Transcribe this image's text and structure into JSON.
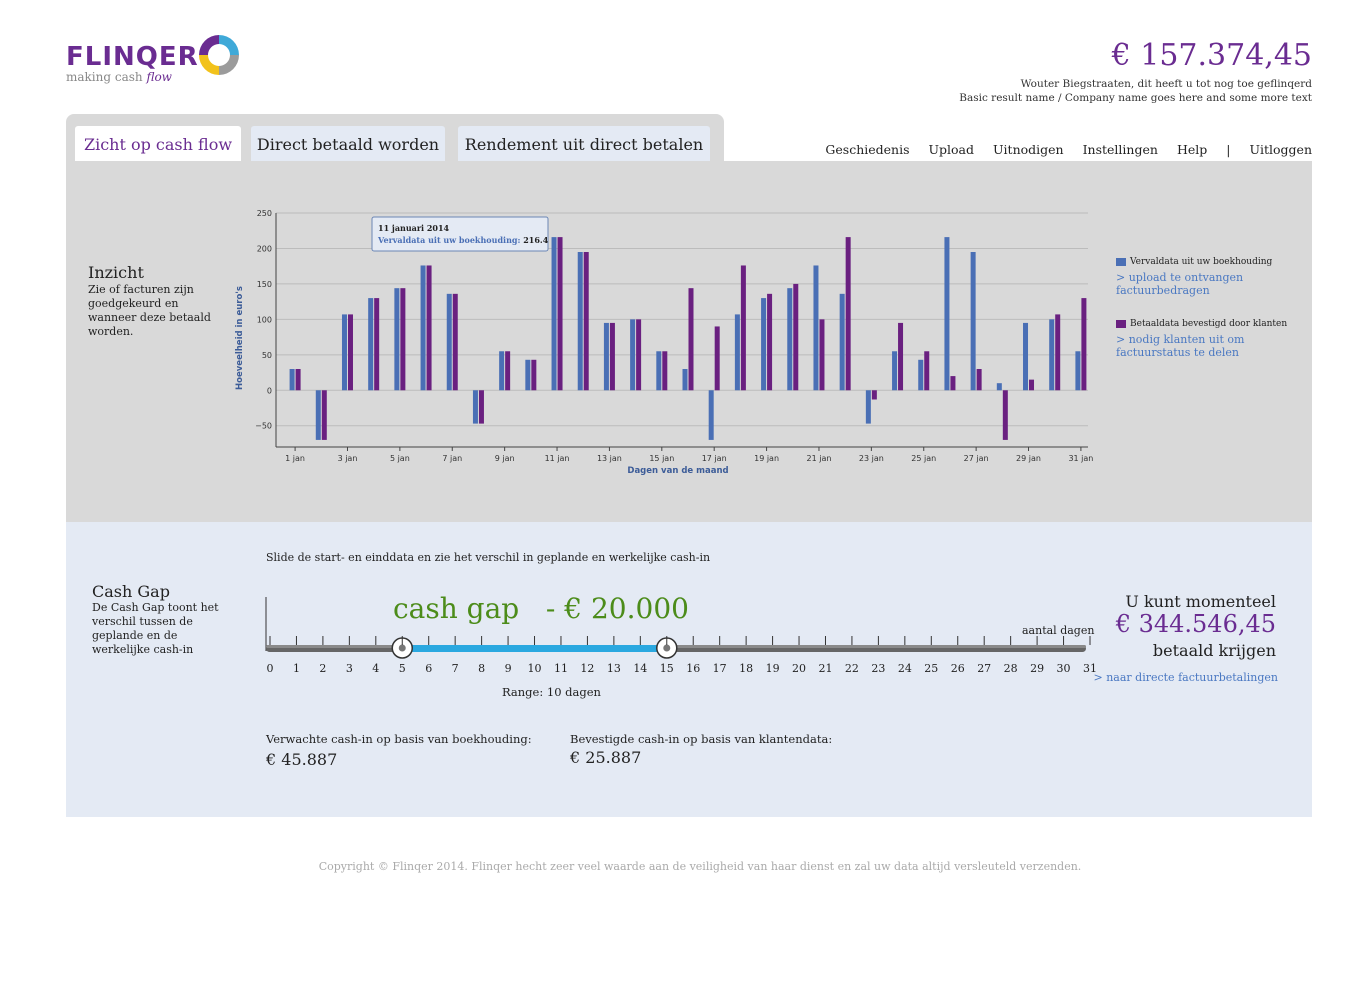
{
  "brand": {
    "name": "FLINQER",
    "tagline_prefix": "making cash ",
    "tagline_em": "flow",
    "colors": {
      "purple": "#6a2c91",
      "blue": "#4a6fb5",
      "green": "#4c8c1a",
      "slider": "#2aa8e0"
    }
  },
  "header": {
    "total_amount": "€ 157.374,45",
    "user_line": "Wouter Biegstraaten, dit heeft u tot nog toe geflinqerd",
    "company_line": "Basic result name / Company name goes here and some more text"
  },
  "tabs": [
    {
      "label": "Zicht op cash flow",
      "active": true
    },
    {
      "label": "Direct betaald worden",
      "active": false
    },
    {
      "label": "Rendement uit direct betalen",
      "active": false
    }
  ],
  "nav": [
    "Geschiedenis",
    "Upload",
    "Uitnodigen",
    "Instellingen",
    "Help",
    "|",
    "Uitloggen"
  ],
  "inzicht": {
    "title": "Inzicht",
    "text": "Zie of facturen zijn goedgekeurd en wanneer deze betaald worden."
  },
  "chart_data": {
    "type": "bar",
    "xlabel": "Dagen van de maand",
    "ylabel": "Hoeveelheid in euro's",
    "ylim": [
      -80,
      250
    ],
    "yticks": [
      -50,
      0,
      50,
      100,
      150,
      200,
      250
    ],
    "grid": true,
    "categories": [
      "1",
      "2",
      "3",
      "4",
      "5",
      "6",
      "7",
      "8",
      "9",
      "10",
      "11",
      "12",
      "13",
      "14",
      "15",
      "16",
      "17",
      "18",
      "19",
      "20",
      "21",
      "22",
      "23",
      "24",
      "25",
      "26",
      "27",
      "28",
      "29",
      "30",
      "31"
    ],
    "xtick_labels": [
      "1 jan",
      "3 jan",
      "5 jan",
      "7 jan",
      "9 jan",
      "11 jan",
      "13 jan",
      "15 jan",
      "17 jan",
      "19 jan",
      "21 jan",
      "23 jan",
      "25 jan",
      "27 jan",
      "29 jan",
      "31 jan"
    ],
    "series": [
      {
        "name": "Vervaldata uit uw boekhouding",
        "color": "#4a6fb5",
        "values": [
          30,
          -70,
          107,
          130,
          144,
          176,
          136,
          -47,
          55,
          43,
          216,
          195,
          95,
          100,
          55,
          30,
          -70,
          107,
          130,
          144,
          176,
          136,
          -47,
          55,
          43,
          216,
          195,
          10,
          95,
          100,
          55
        ]
      },
      {
        "name": "Betaaldata bevestigd door klanten",
        "color": "#6a2080",
        "values": [
          30,
          -70,
          107,
          130,
          144,
          176,
          136,
          -47,
          55,
          43,
          216,
          195,
          95,
          100,
          55,
          144,
          90,
          176,
          136,
          150,
          100,
          216,
          -13,
          95,
          55,
          20,
          30,
          -70,
          15,
          107,
          130
        ]
      }
    ],
    "tooltip": {
      "title": "11 januari 2014",
      "series_label": "Vervaldata uit uw boekhouding:",
      "value": "216.4"
    }
  },
  "legend": {
    "item1": "Vervaldata uit uw boekhouding",
    "link1": "> upload te ontvangen factuurbedragen",
    "item2": "Betaaldata bevestigd door klanten",
    "link2": "> nodig klanten uit om factuurstatus te delen"
  },
  "cashgap": {
    "title": "Cash Gap",
    "text": "De Cash Gap toont het verschil tussen de geplande en de werkelijke cash-in",
    "hint": "Slide de start- en einddata en zie het verschil in geplande en werkelijke cash-in",
    "gap_label": "cash gap   - € 20.000",
    "axis_label": "aantal dagen",
    "range_label": "Range: 10 dagen",
    "slider_min": 0,
    "slider_max": 31,
    "range_start": 5,
    "range_end": 15,
    "expected_label": "Verwachte cash-in op basis van boekhouding:",
    "expected_value": "€ 45.887",
    "confirmed_label": "Bevestigde cash-in  op basis van klantendata:",
    "confirmed_value": "€ 25.887",
    "right_top": "U kunt momenteel",
    "right_amount": "€ 344.546,45",
    "right_bottom": "betaald krijgen",
    "right_link": "> naar directe factuurbetalingen"
  },
  "footer": {
    "copyright": "Copyright © Flinqer 2014. Flinqer hecht zeer veel waarde aan de veiligheid van haar dienst en zal uw data altijd versleuteld verzenden."
  }
}
